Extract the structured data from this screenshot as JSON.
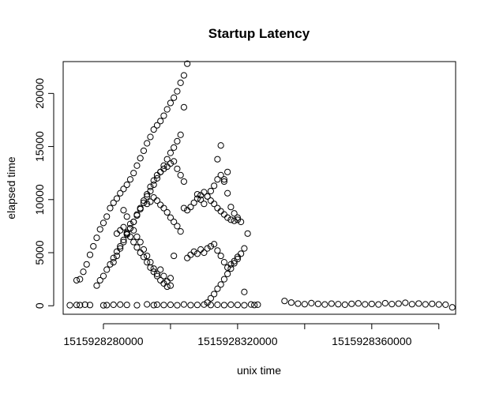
{
  "chart_data": {
    "type": "scatter",
    "title": "Startup Latency",
    "xlabel": "unix time",
    "ylabel": "elapsed time",
    "xlim": [
      1515928268000,
      1515928385000
    ],
    "ylim": [
      -800,
      23000
    ],
    "xticks": [
      {
        "value": 1515928280000,
        "label": "1515928280000"
      },
      {
        "value": 1515928300000,
        "label": ""
      },
      {
        "value": 1515928320000,
        "label": "1515928320000"
      },
      {
        "value": 1515928340000,
        "label": ""
      },
      {
        "value": 1515928360000,
        "label": "1515928360000"
      },
      {
        "value": 1515928380000,
        "label": ""
      }
    ],
    "yticks": [
      {
        "value": 0,
        "label": "0"
      },
      {
        "value": 5000,
        "label": "5000"
      },
      {
        "value": 10000,
        "label": "10000"
      },
      {
        "value": 15000,
        "label": "15000"
      },
      {
        "value": 20000,
        "label": "20000"
      }
    ],
    "marker": "open-circle",
    "grid": false,
    "legend": "none",
    "series": [
      {
        "x": [
          1515928270000,
          1515928272000,
          1515928273000,
          1515928274500,
          1515928276000,
          1515928280000,
          1515928281000,
          1515928283000,
          1515928285000,
          1515928287000,
          1515928290000,
          1515928293000,
          1515928295000,
          1515928296000,
          1515928298000,
          1515928300000,
          1515928302000,
          1515928304000,
          1515928306000,
          1515928308000,
          1515928310000,
          1515928312000,
          1515928314000,
          1515928316000,
          1515928318000,
          1515928320000,
          1515928322000,
          1515928324000,
          1515928325000,
          1515928326000
        ],
        "y": [
          50,
          80,
          60,
          100,
          70,
          40,
          60,
          90,
          110,
          80,
          50,
          130,
          60,
          100,
          70,
          90,
          50,
          120,
          60,
          80,
          110,
          70,
          90,
          60,
          100,
          80,
          50,
          120,
          70,
          100
        ]
      },
      {
        "x": [
          1515928272000,
          1515928273000,
          1515928274000,
          1515928275000,
          1515928276000,
          1515928277000,
          1515928278000,
          1515928279000,
          1515928280000,
          1515928281000,
          1515928282000,
          1515928283000,
          1515928284000,
          1515928285000,
          1515928286000,
          1515928287000,
          1515928288000,
          1515928289000,
          1515928290000,
          1515928291000,
          1515928292000,
          1515928293000,
          1515928294000,
          1515928295000,
          1515928296000,
          1515928297000,
          1515928298000,
          1515928299000,
          1515928300000,
          1515928301000,
          1515928302000,
          1515928303000,
          1515928304000
        ],
        "y": [
          2400,
          2500,
          3200,
          3900,
          4800,
          5600,
          6400,
          7200,
          7800,
          8400,
          9200,
          9700,
          10100,
          10600,
          11000,
          11400,
          11900,
          12500,
          13200,
          13900,
          14600,
          15300,
          15900,
          16600,
          17000,
          17400,
          17900,
          18500,
          19100,
          19600,
          20200,
          21000,
          21700
        ]
      },
      {
        "x": [
          1515928278000,
          1515928279000,
          1515928280000,
          1515928281000,
          1515928282000,
          1515928283000,
          1515928284000,
          1515928285000,
          1515928286000,
          1515928287000,
          1515928288000,
          1515928289000,
          1515928290000,
          1515928291000,
          1515928292000,
          1515928293000,
          1515928294000,
          1515928295000,
          1515928296000,
          1515928297000,
          1515928298000,
          1515928299000,
          1515928300000,
          1515928301000,
          1515928302000,
          1515928303000,
          1515928304000,
          1515928305000
        ],
        "y": [
          1900,
          2400,
          2800,
          3400,
          3900,
          4500,
          5100,
          5600,
          6200,
          6800,
          7300,
          7900,
          8500,
          9100,
          9700,
          10300,
          10800,
          11400,
          12000,
          12600,
          13200,
          13800,
          14400,
          14900,
          15500,
          16100,
          18700,
          22800
        ]
      },
      {
        "x": [
          1515928283000,
          1515928284000,
          1515928285000,
          1515928286000,
          1515928287000,
          1515928288000,
          1515928289000,
          1515928290000,
          1515928291000,
          1515928292000,
          1515928293000,
          1515928294000,
          1515928295000,
          1515928296000,
          1515928297000,
          1515928298000,
          1515928299000,
          1515928300000,
          1515928301000,
          1515928302000,
          1515928303000,
          1515928304000
        ],
        "y": [
          4100,
          4700,
          5400,
          6000,
          6700,
          7300,
          7900,
          8600,
          9200,
          9900,
          10500,
          11200,
          11800,
          12300,
          12600,
          12900,
          13100,
          13400,
          13600,
          12900,
          12300,
          11700
        ]
      },
      {
        "x": [
          1515928284000,
          1515928285000,
          1515928286000,
          1515928287000,
          1515928288000,
          1515928289000,
          1515928290000,
          1515928291000,
          1515928292000,
          1515928293000,
          1515928294000,
          1515928295000,
          1515928296000,
          1515928297000,
          1515928298000,
          1515928299000,
          1515928300000,
          1515928301000
        ],
        "y": [
          6800,
          7100,
          7400,
          6900,
          6500,
          6000,
          5500,
          5000,
          4600,
          4100,
          3600,
          3200,
          2800,
          2400,
          2100,
          1800,
          2600,
          4700
        ]
      },
      {
        "x": [
          1515928286000,
          1515928287000,
          1515928288000,
          1515928289000,
          1515928290000,
          1515928291000,
          1515928292000,
          1515928293000,
          1515928294000,
          1515928295000,
          1515928296000,
          1515928297000,
          1515928298000,
          1515928299000,
          1515928300000
        ],
        "y": [
          9000,
          8400,
          7700,
          7100,
          6500,
          6000,
          5300,
          4700,
          4100,
          3500,
          3000,
          3400,
          2800,
          2300,
          1900
        ]
      },
      {
        "x": [
          1515928293000,
          1515928294000,
          1515928295000,
          1515928296000,
          1515928297000,
          1515928298000,
          1515928299000,
          1515928300000,
          1515928301000,
          1515928302000,
          1515928303000
        ],
        "y": [
          9600,
          9800,
          10200,
          9900,
          9500,
          9200,
          8800,
          8300,
          7900,
          7500,
          7000
        ]
      },
      {
        "x": [
          1515928304000,
          1515928305000,
          1515928306000,
          1515928307000,
          1515928308000,
          1515928309000,
          1515928310000,
          1515928311000,
          1515928312000,
          1515928313000,
          1515928314000,
          1515928315000,
          1515928316000,
          1515928317000,
          1515928318000,
          1515928319000,
          1515928320000
        ],
        "y": [
          9200,
          9000,
          9300,
          9700,
          10100,
          10400,
          10700,
          10300,
          9900,
          9600,
          9200,
          8900,
          8600,
          8300,
          8100,
          8000,
          8300
        ]
      },
      {
        "x": [
          1515928308000,
          1515928309000,
          1515928310000,
          1515928311000,
          1515928312000,
          1515928313000,
          1515928314000,
          1515928315000,
          1515928316000,
          1515928317000,
          1515928318000,
          1515928319000,
          1515928320000,
          1515928321000
        ],
        "y": [
          10500,
          10000,
          9600,
          10300,
          10800,
          11300,
          11900,
          12300,
          11700,
          10600,
          9300,
          8700,
          8100,
          7900
        ]
      },
      {
        "x": [
          1515928305000,
          1515928306000,
          1515928307000,
          1515928308000,
          1515928309000,
          1515928310000,
          1515928311000,
          1515928312000,
          1515928313000,
          1515928314000,
          1515928315000,
          1515928316000,
          1515928317000,
          1515928318000,
          1515928319000,
          1515928320000,
          1515928321000,
          1515928322000,
          1515928323000
        ],
        "y": [
          4500,
          4800,
          5100,
          4900,
          5300,
          5000,
          5400,
          5600,
          5800,
          5200,
          4700,
          4100,
          3600,
          3900,
          4200,
          4600,
          4900,
          5400,
          6800
        ]
      },
      {
        "x": [
          1515928311000,
          1515928312000,
          1515928313000,
          1515928314000,
          1515928315000,
          1515928316000,
          1515928317000,
          1515928318000,
          1515928319000,
          1515928320000
        ],
        "y": [
          300,
          700,
          1100,
          1600,
          2000,
          2500,
          3000,
          3500,
          4000,
          4400
        ]
      },
      {
        "x": [
          1515928314000,
          1515928315000,
          1515928316000,
          1515928317000,
          1515928322000
        ],
        "y": [
          13800,
          15100,
          11900,
          12600,
          1300
        ]
      },
      {
        "x": [
          1515928334000,
          1515928336000,
          1515928338000,
          1515928340000,
          1515928342000,
          1515928344000,
          1515928346000,
          1515928348000,
          1515928350000,
          1515928352000,
          1515928354000,
          1515928356000,
          1515928358000,
          1515928360000,
          1515928362000,
          1515928364000,
          1515928366000,
          1515928368000,
          1515928370000,
          1515928372000,
          1515928374000,
          1515928376000,
          1515928378000,
          1515928380000,
          1515928382000,
          1515928384000
        ],
        "y": [
          450,
          300,
          200,
          150,
          250,
          180,
          120,
          200,
          150,
          100,
          180,
          220,
          130,
          170,
          120,
          240,
          160,
          200,
          280,
          150,
          210,
          130,
          180,
          120,
          100,
          -150
        ]
      }
    ]
  }
}
